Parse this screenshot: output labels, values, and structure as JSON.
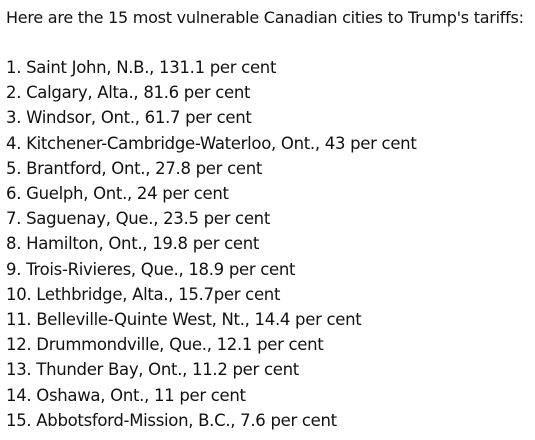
{
  "intro": "Here are the 15 most vulnerable Canadian cities to Trump's tariffs:",
  "items": [
    "1. Saint John, N.B., 131.1 per cent",
    "2. Calgary, Alta., 81.6 per cent",
    "3. Windsor, Ont., 61.7 per cent",
    "4. Kitchener-Cambridge-Waterloo, Ont., 43 per cent",
    "5. Brantford, Ont., 27.8 per cent",
    "6. Guelph, Ont., 24 per cent",
    "7. Saguenay, Que., 23.5 per cent",
    "8. Hamilton, Ont., 19.8 per cent",
    "9. Trois-Rivieres, Que., 18.9 per cent",
    "10. Lethbridge, Alta., 15.7per cent",
    "11. Belleville-Quinte West, Nt., 14.4 per cent",
    "12. Drummondville, Que., 12.1 per cent",
    "13. Thunder Bay, Ont., 11.2 per cent",
    "14. Oshawa, Ont., 11 per cent",
    "15. Abbotsford-Mission, B.C., 7.6 per cent"
  ]
}
